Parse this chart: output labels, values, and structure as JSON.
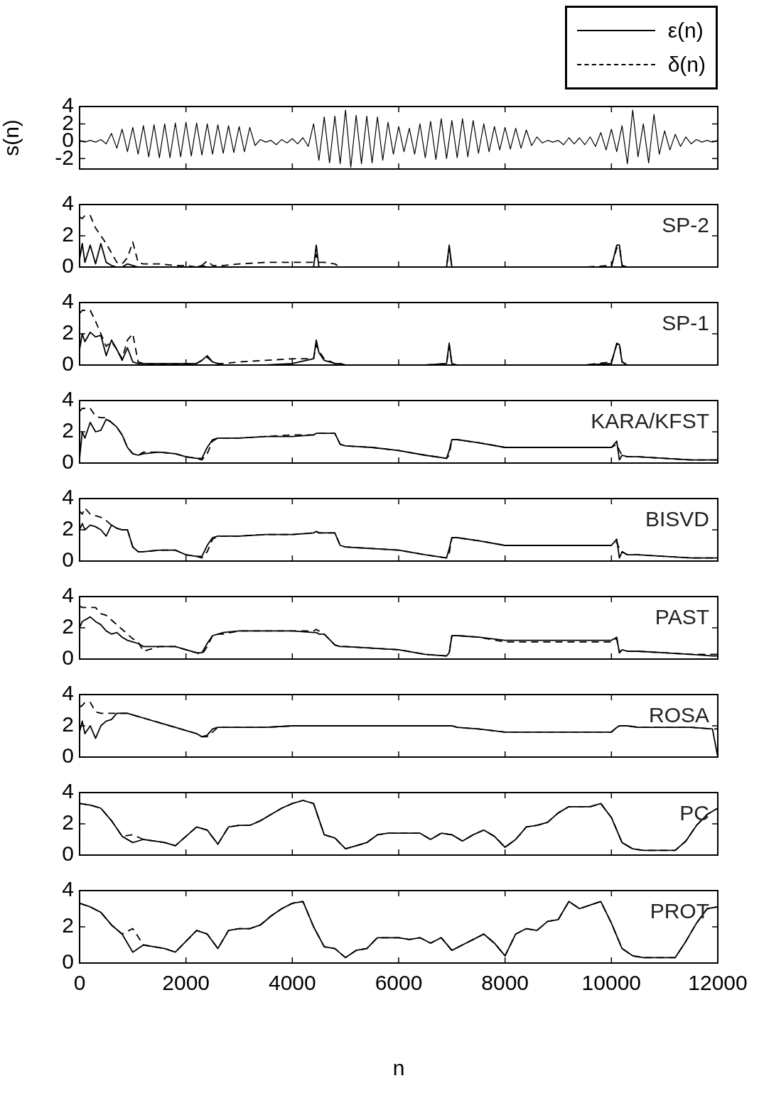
{
  "chart_data": [
    {
      "type": "line",
      "ylabel": "s(n)",
      "xlim": [
        0,
        12000
      ],
      "xticks": [
        0,
        2000,
        4000,
        6000,
        8000,
        10000,
        12000
      ],
      "ylim": [
        -3.2,
        4
      ],
      "yticks": [
        -2,
        0,
        2,
        4
      ],
      "tick_labels": "y",
      "x": [
        0,
        100,
        200,
        300,
        400,
        500,
        600,
        700,
        800,
        900,
        1000,
        1100,
        1200,
        1300,
        1400,
        1500,
        1600,
        1700,
        1800,
        1900,
        2000,
        2100,
        2200,
        2300,
        2400,
        2500,
        2600,
        2700,
        2800,
        2900,
        3000,
        3100,
        3200,
        3300,
        3400,
        3500,
        3600,
        3700,
        3800,
        3900,
        4000,
        4100,
        4200,
        4300,
        4400,
        4500,
        4600,
        4700,
        4800,
        4900,
        5000,
        5100,
        5200,
        5300,
        5400,
        5500,
        5600,
        5700,
        5800,
        5900,
        6000,
        6100,
        6200,
        6300,
        6400,
        6500,
        6600,
        6700,
        6800,
        6900,
        7000,
        7100,
        7200,
        7300,
        7400,
        7500,
        7600,
        7700,
        7800,
        7900,
        8000,
        8100,
        8200,
        8300,
        8400,
        8500,
        8600,
        8700,
        8800,
        8900,
        9000,
        9100,
        9200,
        9300,
        9400,
        9500,
        9600,
        9700,
        9800,
        9900,
        10000,
        10100,
        10200,
        10300,
        10400,
        10500,
        10600,
        10700,
        10800,
        10900,
        11000,
        11100,
        11200,
        11300,
        11400,
        11500,
        11600,
        11700,
        11800,
        11900,
        12000
      ],
      "series": [
        {
          "color": "#000000",
          "values": [
            0.1,
            -0.1,
            0.1,
            -0.1,
            0.2,
            -0.3,
            0.9,
            -0.8,
            1.4,
            -1.2,
            1.6,
            -1.5,
            1.8,
            -1.8,
            1.9,
            -1.9,
            2.0,
            -1.9,
            2.1,
            -1.8,
            2.2,
            -1.7,
            2.1,
            -1.6,
            2.0,
            -1.5,
            1.9,
            -1.4,
            1.8,
            -1.3,
            1.7,
            -1.2,
            1.6,
            -0.5,
            0.2,
            -0.1,
            0.1,
            -0.4,
            0.2,
            -0.2,
            0.3,
            -0.3,
            0.4,
            -0.6,
            2.0,
            -2.2,
            2.8,
            -2.5,
            2.9,
            -2.6,
            3.6,
            -3.0,
            3.0,
            -2.6,
            2.9,
            -2.5,
            2.8,
            -2.2,
            2.2,
            -1.5,
            1.7,
            -1.2,
            1.5,
            -1.5,
            2.0,
            -1.9,
            2.3,
            -2.1,
            2.6,
            -2.0,
            2.4,
            -1.9,
            2.6,
            -1.8,
            2.4,
            -1.4,
            2.0,
            -1.2,
            1.7,
            -1.0,
            1.6,
            -0.9,
            1.5,
            -0.8,
            1.3,
            -0.5,
            0.5,
            -0.2,
            0.1,
            -0.1,
            0.1,
            -0.4,
            0.4,
            -0.3,
            0.4,
            -0.4,
            0.5,
            -0.6,
            1.0,
            -1.0,
            1.4,
            -1.2,
            1.8,
            -2.6,
            3.6,
            -1.8,
            2.0,
            -2.5,
            3.1,
            -1.5,
            1.2,
            -1.0,
            0.8,
            -0.6,
            0.5,
            -0.3,
            0.2,
            -0.1,
            0.1,
            -0.1,
            0.1
          ]
        }
      ]
    },
    {
      "type": "line",
      "annotations": [
        "SP-2"
      ],
      "legend": "top right",
      "xlim": [
        0,
        12000
      ],
      "xticks": [
        0,
        2000,
        4000,
        6000,
        8000,
        10000,
        12000
      ],
      "ylim": [
        0,
        4
      ],
      "yticks": [
        0,
        2,
        4
      ],
      "tick_labels": "y",
      "x": [
        0,
        50,
        100,
        200,
        300,
        400,
        500,
        600,
        700,
        800,
        900,
        1000,
        1100,
        1200,
        1500,
        1800,
        2000,
        2200,
        2300,
        2400,
        2500,
        2600,
        2700,
        3000,
        3500,
        4000,
        4400,
        4450,
        4500,
        4600,
        4800,
        4900,
        5000,
        5500,
        6000,
        6500,
        6900,
        6950,
        7000,
        7100,
        7500,
        8000,
        8500,
        9000,
        9500,
        10000,
        10100,
        10150,
        10200,
        10300,
        10500,
        11000,
        11500,
        11900,
        12000
      ],
      "series": [
        {
          "name": "ε(n)",
          "color": "#000000",
          "line_style": "solid",
          "values": [
            0.5,
            1.5,
            0.3,
            1.4,
            0.2,
            1.5,
            0.3,
            0.1,
            0,
            0,
            0.2,
            0.1,
            0,
            0,
            0,
            0,
            0,
            0,
            0.1,
            0,
            0,
            0,
            0,
            0,
            0,
            0,
            0,
            1.4,
            0,
            0,
            0,
            0,
            0,
            0,
            0,
            0,
            0,
            1.4,
            0,
            0,
            0,
            0,
            0,
            0,
            0,
            0,
            1.4,
            1.4,
            0.1,
            0,
            0,
            0,
            0,
            0,
            0
          ]
        },
        {
          "name": "δ(n)",
          "color": "#000000",
          "line_style": "dashed",
          "values": [
            3.2,
            3.1,
            3.3,
            3.3,
            2.5,
            2.0,
            1.5,
            0.9,
            0.3,
            0.2,
            0.6,
            1.6,
            0.3,
            0.2,
            0.2,
            0.1,
            0.1,
            0,
            0.1,
            0.4,
            0.1,
            0.1,
            0.1,
            0.2,
            0.3,
            0.3,
            0.3,
            0.8,
            0.3,
            0.3,
            0.2,
            0,
            0,
            0,
            0,
            0,
            0,
            1.2,
            0,
            0,
            0,
            0,
            0,
            0,
            0,
            0.1,
            1.2,
            1.3,
            0.1,
            0,
            0,
            0,
            0,
            0,
            0
          ]
        }
      ]
    },
    {
      "type": "line",
      "annotations": [
        "SP-1"
      ],
      "xlim": [
        0,
        12000
      ],
      "xticks": [
        0,
        2000,
        4000,
        6000,
        8000,
        10000,
        12000
      ],
      "ylim": [
        0,
        4
      ],
      "yticks": [
        0,
        2,
        4
      ],
      "tick_labels": "y",
      "x": [
        0,
        50,
        100,
        200,
        300,
        400,
        500,
        600,
        700,
        800,
        900,
        1000,
        1100,
        1200,
        1500,
        1800,
        2000,
        2200,
        2300,
        2400,
        2500,
        2600,
        2700,
        3000,
        3500,
        4000,
        4400,
        4450,
        4500,
        4600,
        4800,
        4900,
        5000,
        5500,
        6000,
        6500,
        6900,
        6950,
        7000,
        7100,
        7500,
        8000,
        8500,
        9000,
        9500,
        10000,
        10100,
        10150,
        10200,
        10300,
        10500,
        11000,
        11500,
        11900,
        12000
      ],
      "series": [
        {
          "color": "#000000",
          "line_style": "solid",
          "values": [
            1.0,
            2.0,
            1.5,
            2.1,
            1.8,
            1.9,
            0.6,
            1.6,
            1.0,
            0.3,
            1.1,
            0.2,
            0.1,
            0.1,
            0.1,
            0.1,
            0.1,
            0.1,
            0.3,
            0.6,
            0.2,
            0.1,
            0,
            0,
            0,
            0.1,
            0.4,
            1.6,
            0.8,
            0.3,
            0.1,
            0.1,
            0,
            0,
            0,
            0,
            0.1,
            1.4,
            0.1,
            0,
            0,
            0,
            0,
            0,
            0,
            0.1,
            1.4,
            1.3,
            0.2,
            0,
            0,
            0,
            0,
            0,
            0
          ]
        },
        {
          "color": "#000000",
          "line_style": "dashed",
          "values": [
            3.3,
            3.5,
            3.5,
            3.5,
            2.8,
            2.0,
            1.2,
            1.5,
            1.0,
            0.4,
            1.6,
            2.0,
            0.2,
            0.1,
            0.1,
            0.1,
            0.1,
            0.1,
            0.3,
            0.5,
            0.2,
            0.1,
            0.1,
            0.2,
            0.3,
            0.4,
            0.4,
            1.3,
            0.9,
            0.4,
            0.1,
            0.1,
            0,
            0,
            0,
            0,
            0.1,
            1.2,
            0.1,
            0,
            0,
            0,
            0,
            0,
            0,
            0.2,
            1.3,
            1.4,
            0.2,
            0,
            0,
            0,
            0,
            0,
            0
          ]
        }
      ]
    },
    {
      "type": "line",
      "annotations": [
        "KARA/KFST"
      ],
      "xlim": [
        0,
        12000
      ],
      "xticks": [
        0,
        2000,
        4000,
        6000,
        8000,
        10000,
        12000
      ],
      "ylim": [
        0,
        4
      ],
      "yticks": [
        0,
        2,
        4
      ],
      "tick_labels": "y",
      "x": [
        0,
        50,
        100,
        200,
        300,
        400,
        500,
        600,
        700,
        800,
        900,
        1000,
        1100,
        1200,
        1500,
        1800,
        2000,
        2200,
        2300,
        2400,
        2500,
        2600,
        2700,
        3000,
        3500,
        4000,
        4400,
        4450,
        4500,
        4600,
        4800,
        4900,
        5000,
        5500,
        6000,
        6500,
        6900,
        6950,
        7000,
        7100,
        7500,
        8000,
        8500,
        9000,
        9500,
        10000,
        10100,
        10150,
        10200,
        10300,
        10500,
        11000,
        11500,
        11900,
        12000
      ],
      "series": [
        {
          "color": "#000000",
          "line_style": "solid",
          "values": [
            0.3,
            2.0,
            1.6,
            2.6,
            2.0,
            2.1,
            2.8,
            2.6,
            2.3,
            1.8,
            1.0,
            0.6,
            0.5,
            0.6,
            0.7,
            0.6,
            0.4,
            0.3,
            0.3,
            1.0,
            1.5,
            1.6,
            1.6,
            1.6,
            1.7,
            1.7,
            1.8,
            1.9,
            1.9,
            1.9,
            1.9,
            1.2,
            1.1,
            1.0,
            0.8,
            0.5,
            0.3,
            0.8,
            1.5,
            1.5,
            1.3,
            1.0,
            1.0,
            1.0,
            1.0,
            1.0,
            1.4,
            0.2,
            0.5,
            0.4,
            0.4,
            0.3,
            0.2,
            0.2,
            0.2
          ]
        },
        {
          "color": "#000000",
          "line_style": "dashed",
          "values": [
            3.3,
            3.5,
            3.5,
            3.5,
            3.0,
            2.9,
            2.9,
            2.6,
            2.3,
            1.8,
            1.0,
            0.6,
            0.5,
            0.7,
            0.7,
            0.6,
            0.4,
            0.3,
            0.2,
            0.6,
            1.4,
            1.6,
            1.6,
            1.6,
            1.7,
            1.8,
            1.8,
            1.9,
            1.9,
            1.9,
            1.9,
            1.2,
            1.1,
            1.0,
            0.8,
            0.5,
            0.3,
            0.5,
            1.5,
            1.5,
            1.3,
            1.0,
            1.0,
            1.0,
            1.0,
            1.0,
            1.2,
            0.8,
            0.5,
            0.4,
            0.4,
            0.3,
            0.2,
            0.2,
            0.2
          ]
        }
      ]
    },
    {
      "type": "line",
      "annotations": [
        "BISVD"
      ],
      "xlim": [
        0,
        12000
      ],
      "xticks": [
        0,
        2000,
        4000,
        6000,
        8000,
        10000,
        12000
      ],
      "ylim": [
        0,
        4
      ],
      "yticks": [
        0,
        2,
        4
      ],
      "tick_labels": "y",
      "x": [
        0,
        50,
        100,
        200,
        300,
        400,
        500,
        600,
        700,
        800,
        900,
        1000,
        1100,
        1200,
        1500,
        1800,
        2000,
        2200,
        2300,
        2400,
        2500,
        2600,
        2700,
        3000,
        3500,
        4000,
        4400,
        4450,
        4500,
        4600,
        4800,
        4900,
        5000,
        5500,
        6000,
        6500,
        6900,
        6950,
        7000,
        7100,
        7500,
        8000,
        8500,
        9000,
        9500,
        10000,
        10100,
        10150,
        10200,
        10300,
        10500,
        11000,
        11500,
        11900,
        12000
      ],
      "series": [
        {
          "color": "#000000",
          "line_style": "solid",
          "values": [
            2.0,
            2.4,
            2.0,
            2.3,
            2.2,
            2.0,
            1.6,
            2.3,
            2.1,
            2.0,
            2.0,
            0.9,
            0.6,
            0.6,
            0.7,
            0.7,
            0.4,
            0.3,
            0.3,
            1.0,
            1.5,
            1.6,
            1.6,
            1.6,
            1.7,
            1.7,
            1.8,
            1.9,
            1.8,
            1.8,
            1.8,
            1.0,
            0.9,
            0.8,
            0.7,
            0.4,
            0.2,
            0.8,
            1.5,
            1.5,
            1.3,
            1.0,
            1.0,
            1.0,
            1.0,
            1.0,
            1.4,
            0.2,
            0.6,
            0.4,
            0.4,
            0.3,
            0.2,
            0.2,
            0.2
          ]
        },
        {
          "color": "#000000",
          "line_style": "dashed",
          "values": [
            3.2,
            3.0,
            3.4,
            3.0,
            2.9,
            2.8,
            2.6,
            2.3,
            2.1,
            2.0,
            2.0,
            0.9,
            0.6,
            0.6,
            0.7,
            0.7,
            0.4,
            0.3,
            0.2,
            0.6,
            1.4,
            1.6,
            1.6,
            1.6,
            1.7,
            1.7,
            1.8,
            1.9,
            1.8,
            1.8,
            1.8,
            1.0,
            0.9,
            0.8,
            0.7,
            0.4,
            0.2,
            0.5,
            1.5,
            1.5,
            1.3,
            1.0,
            1.0,
            1.0,
            1.0,
            1.0,
            1.2,
            0.8,
            0.6,
            0.4,
            0.4,
            0.3,
            0.2,
            0.2,
            0.2
          ]
        }
      ]
    },
    {
      "type": "line",
      "annotations": [
        "PAST"
      ],
      "xlim": [
        0,
        12000
      ],
      "xticks": [
        0,
        2000,
        4000,
        6000,
        8000,
        10000,
        12000
      ],
      "ylim": [
        0,
        4
      ],
      "yticks": [
        0,
        2,
        4
      ],
      "tick_labels": "y",
      "x": [
        0,
        50,
        100,
        200,
        300,
        400,
        500,
        600,
        700,
        800,
        900,
        1000,
        1100,
        1200,
        1500,
        1800,
        2000,
        2200,
        2300,
        2400,
        2500,
        2600,
        2700,
        3000,
        3500,
        4000,
        4400,
        4450,
        4500,
        4600,
        4800,
        4900,
        5000,
        5500,
        6000,
        6500,
        6900,
        6950,
        7000,
        7100,
        7500,
        8000,
        8500,
        9000,
        9500,
        10000,
        10100,
        10150,
        10200,
        10300,
        10500,
        11000,
        11500,
        11900,
        12000
      ],
      "series": [
        {
          "color": "#000000",
          "line_style": "solid",
          "values": [
            2.0,
            2.4,
            2.5,
            2.7,
            2.4,
            2.2,
            1.8,
            1.6,
            1.7,
            1.4,
            1.2,
            1.1,
            1.0,
            0.8,
            0.8,
            0.8,
            0.6,
            0.4,
            0.4,
            1.0,
            1.5,
            1.6,
            1.7,
            1.8,
            1.8,
            1.8,
            1.7,
            1.7,
            1.6,
            1.6,
            0.9,
            0.8,
            0.8,
            0.7,
            0.6,
            0.3,
            0.2,
            0.4,
            1.5,
            1.5,
            1.4,
            1.2,
            1.2,
            1.2,
            1.2,
            1.2,
            1.4,
            0.4,
            0.6,
            0.5,
            0.5,
            0.4,
            0.3,
            0.2,
            0.2
          ]
        },
        {
          "color": "#000000",
          "line_style": "dashed",
          "values": [
            3.4,
            3.3,
            3.3,
            3.3,
            3.3,
            2.9,
            2.8,
            2.5,
            2.2,
            1.9,
            1.6,
            1.3,
            1.1,
            0.5,
            0.8,
            0.8,
            0.6,
            0.4,
            0.3,
            0.8,
            1.5,
            1.6,
            1.6,
            1.8,
            1.8,
            1.8,
            1.8,
            1.9,
            1.8,
            1.6,
            0.9,
            0.8,
            0.8,
            0.7,
            0.6,
            0.3,
            0.2,
            0.4,
            1.5,
            1.5,
            1.4,
            1.1,
            1.1,
            1.1,
            1.1,
            1.1,
            1.3,
            0.4,
            0.6,
            0.5,
            0.5,
            0.4,
            0.3,
            0.3,
            0.3
          ]
        }
      ]
    },
    {
      "type": "line",
      "annotations": [
        "ROSA"
      ],
      "xlim": [
        0,
        12000
      ],
      "xticks": [
        0,
        2000,
        4000,
        6000,
        8000,
        10000,
        12000
      ],
      "ylim": [
        0,
        4
      ],
      "yticks": [
        0,
        2,
        4
      ],
      "tick_labels": "y",
      "x": [
        0,
        50,
        100,
        200,
        300,
        400,
        500,
        600,
        700,
        800,
        900,
        1000,
        1100,
        1200,
        1500,
        1800,
        2000,
        2200,
        2300,
        2400,
        2500,
        2600,
        2700,
        3000,
        3500,
        4000,
        4400,
        4450,
        4500,
        4600,
        4800,
        4900,
        5000,
        5500,
        6000,
        6500,
        6900,
        6950,
        7000,
        7100,
        7500,
        8000,
        8500,
        9000,
        9500,
        10000,
        10100,
        10150,
        10200,
        10300,
        10500,
        11000,
        11500,
        11900,
        12000
      ],
      "series": [
        {
          "color": "#000000",
          "line_style": "solid",
          "values": [
            1.6,
            2.3,
            1.5,
            2.0,
            1.2,
            2.0,
            2.3,
            2.4,
            2.8,
            2.8,
            2.8,
            2.7,
            2.6,
            2.5,
            2.2,
            1.9,
            1.7,
            1.5,
            1.3,
            1.4,
            1.8,
            1.9,
            1.9,
            1.9,
            1.9,
            2.0,
            2.0,
            2.0,
            2.0,
            2.0,
            2.0,
            2.0,
            2.0,
            2.0,
            2.0,
            2.0,
            2.0,
            2.0,
            2.0,
            1.9,
            1.8,
            1.6,
            1.6,
            1.6,
            1.6,
            1.6,
            1.9,
            2.0,
            2.0,
            2.0,
            1.9,
            1.9,
            1.9,
            1.8,
            0
          ]
        },
        {
          "color": "#000000",
          "line_style": "dashed",
          "values": [
            3.2,
            3.3,
            3.5,
            3.5,
            2.9,
            2.8,
            2.8,
            2.8,
            2.8,
            2.8,
            2.8,
            2.7,
            2.6,
            2.5,
            2.2,
            1.9,
            1.7,
            1.5,
            1.3,
            1.3,
            1.6,
            1.9,
            1.9,
            1.9,
            1.9,
            2.0,
            2.0,
            2.0,
            2.0,
            2.0,
            2.0,
            2.0,
            2.0,
            2.0,
            2.0,
            2.0,
            2.0,
            2.0,
            2.0,
            1.9,
            1.8,
            1.6,
            1.6,
            1.6,
            1.6,
            1.6,
            1.9,
            2.0,
            2.0,
            2.0,
            1.9,
            1.9,
            1.9,
            1.8,
            1.8
          ]
        }
      ]
    },
    {
      "type": "line",
      "annotations": [
        "PC"
      ],
      "xlim": [
        0,
        12000
      ],
      "xticks": [
        0,
        2000,
        4000,
        6000,
        8000,
        10000,
        12000
      ],
      "ylim": [
        0,
        4
      ],
      "yticks": [
        0,
        2,
        4
      ],
      "tick_labels": "y",
      "x": [
        0,
        200,
        400,
        600,
        800,
        1000,
        1200,
        1400,
        1600,
        1800,
        2000,
        2200,
        2400,
        2600,
        2800,
        3000,
        3200,
        3400,
        3600,
        3800,
        4000,
        4200,
        4400,
        4600,
        4800,
        5000,
        5200,
        5400,
        5600,
        5800,
        6000,
        6200,
        6400,
        6600,
        6800,
        7000,
        7200,
        7400,
        7600,
        7800,
        8000,
        8200,
        8400,
        8600,
        8800,
        9000,
        9200,
        9400,
        9600,
        9800,
        10000,
        10200,
        10400,
        10600,
        10800,
        11000,
        11200,
        11400,
        11600,
        11800,
        12000
      ],
      "series": [
        {
          "color": "#000000",
          "line_style": "solid",
          "values": [
            3.3,
            3.2,
            3.0,
            2.2,
            1.2,
            0.8,
            1.0,
            0.9,
            0.8,
            0.6,
            1.2,
            1.8,
            1.6,
            0.7,
            1.8,
            1.9,
            1.9,
            2.2,
            2.6,
            3.0,
            3.3,
            3.5,
            3.3,
            1.3,
            1.1,
            0.4,
            0.6,
            0.8,
            1.3,
            1.4,
            1.4,
            1.4,
            1.4,
            1.0,
            1.4,
            1.3,
            0.9,
            1.3,
            1.6,
            1.2,
            0.5,
            1.0,
            1.8,
            1.9,
            2.1,
            2.7,
            3.1,
            3.1,
            3.1,
            3.3,
            2.4,
            0.8,
            0.4,
            0.3,
            0.3,
            0.3,
            0.3,
            0.9,
            1.9,
            2.6,
            3.0
          ]
        },
        {
          "color": "#000000",
          "line_style": "dashed",
          "values": [
            3.3,
            3.2,
            3.0,
            2.2,
            1.2,
            1.3,
            1.0,
            0.9,
            0.8,
            0.6,
            1.2,
            1.8,
            1.6,
            0.7,
            1.8,
            1.9,
            1.9,
            2.2,
            2.6,
            3.0,
            3.3,
            3.5,
            3.3,
            1.3,
            1.1,
            0.4,
            0.6,
            0.8,
            1.3,
            1.4,
            1.4,
            1.4,
            1.4,
            1.0,
            1.4,
            1.3,
            0.9,
            1.3,
            1.6,
            1.2,
            0.5,
            1.0,
            1.8,
            1.9,
            2.1,
            2.7,
            3.1,
            3.1,
            3.1,
            3.3,
            2.4,
            0.8,
            0.4,
            0.3,
            0.3,
            0.3,
            0.3,
            0.9,
            1.9,
            2.6,
            3.0
          ]
        }
      ]
    },
    {
      "type": "line",
      "annotations": [
        "PROT"
      ],
      "xlabel": "n",
      "xlim": [
        0,
        12000
      ],
      "xticks": [
        0,
        2000,
        4000,
        6000,
        8000,
        10000,
        12000
      ],
      "ylim": [
        0,
        4
      ],
      "yticks": [
        0,
        2,
        4
      ],
      "x": [
        0,
        200,
        400,
        600,
        800,
        1000,
        1200,
        1400,
        1600,
        1800,
        2000,
        2200,
        2400,
        2600,
        2800,
        3000,
        3200,
        3400,
        3600,
        3800,
        4000,
        4200,
        4400,
        4600,
        4800,
        5000,
        5200,
        5400,
        5600,
        5800,
        6000,
        6200,
        6400,
        6600,
        6800,
        7000,
        7200,
        7400,
        7600,
        7800,
        8000,
        8200,
        8400,
        8600,
        8800,
        9000,
        9200,
        9400,
        9600,
        9800,
        10000,
        10200,
        10400,
        10600,
        10800,
        11000,
        11200,
        11400,
        11600,
        11800,
        12000
      ],
      "series": [
        {
          "color": "#000000",
          "line_style": "solid",
          "values": [
            3.3,
            3.1,
            2.8,
            2.1,
            1.6,
            0.6,
            1.0,
            0.9,
            0.8,
            0.6,
            1.2,
            1.8,
            1.6,
            0.8,
            1.8,
            1.9,
            1.9,
            2.1,
            2.6,
            3.0,
            3.3,
            3.4,
            2.0,
            0.9,
            0.8,
            0.3,
            0.7,
            0.8,
            1.4,
            1.4,
            1.4,
            1.3,
            1.4,
            1.1,
            1.4,
            0.7,
            1.0,
            1.3,
            1.6,
            1.1,
            0.4,
            1.6,
            1.9,
            1.8,
            2.3,
            2.4,
            3.4,
            3.0,
            3.2,
            3.4,
            2.2,
            0.8,
            0.4,
            0.3,
            0.3,
            0.3,
            0.3,
            1.2,
            2.2,
            3.0,
            3.1
          ]
        },
        {
          "color": "#000000",
          "line_style": "dashed",
          "values": [
            3.3,
            3.1,
            2.8,
            2.1,
            1.6,
            1.9,
            1.0,
            0.9,
            0.8,
            0.6,
            1.2,
            1.8,
            1.6,
            0.8,
            1.8,
            1.9,
            1.9,
            2.1,
            2.6,
            3.0,
            3.3,
            3.4,
            2.0,
            0.9,
            0.8,
            0.3,
            0.7,
            0.8,
            1.4,
            1.4,
            1.4,
            1.3,
            1.4,
            1.1,
            1.4,
            0.7,
            1.0,
            1.3,
            1.6,
            1.1,
            0.4,
            1.6,
            1.9,
            1.8,
            2.3,
            2.4,
            3.4,
            3.0,
            3.2,
            3.4,
            2.2,
            0.8,
            0.4,
            0.3,
            0.3,
            0.3,
            0.3,
            1.2,
            2.2,
            3.0,
            3.1
          ]
        }
      ]
    }
  ]
}
